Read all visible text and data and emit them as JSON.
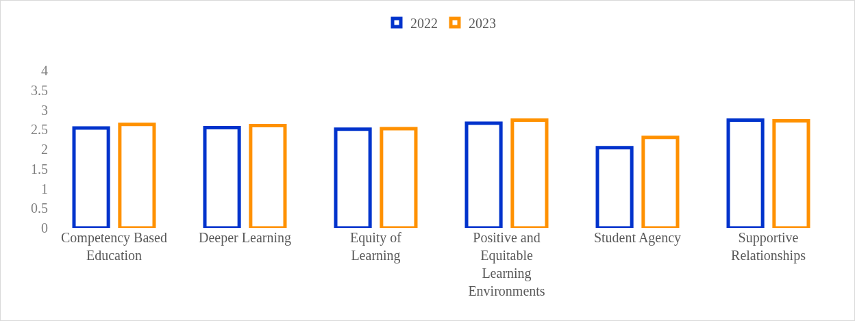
{
  "chart_data": {
    "type": "bar",
    "categories": [
      "Competency Based Education",
      "Deeper Learning",
      "Equity of Learning",
      "Positive and Equitable Learning Environments",
      "Student Agency",
      "Supportive Relationships"
    ],
    "series": [
      {
        "name": "2022",
        "color": "#0033cc",
        "values": [
          2.54,
          2.55,
          2.51,
          2.66,
          2.04,
          2.74
        ]
      },
      {
        "name": "2023",
        "color": "#ff9100",
        "values": [
          2.63,
          2.6,
          2.52,
          2.74,
          2.3,
          2.72
        ]
      }
    ],
    "ylim": [
      0,
      4
    ],
    "yticks": [
      0,
      0.5,
      1,
      1.5,
      2,
      2.5,
      3,
      3.5,
      4
    ],
    "grid": false,
    "legend": "top"
  }
}
